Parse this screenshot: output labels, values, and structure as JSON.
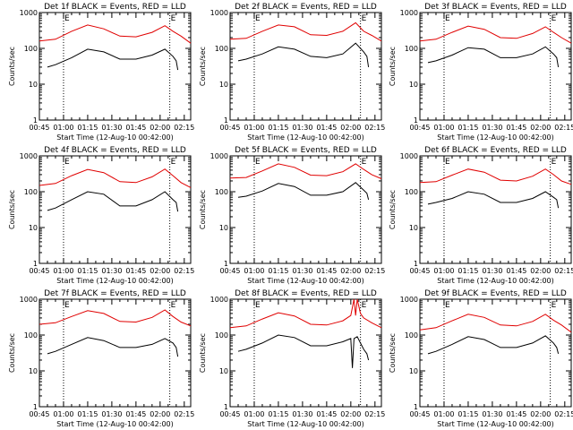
{
  "chart_data": {
    "type": "line",
    "x_label": "Start Time (12-Aug-10 00:42:00)",
    "x_ticks": [
      "00:45",
      "01:00",
      "01:15",
      "01:30",
      "01:45",
      "02:00",
      "02:15"
    ],
    "y_label": "Counts/sec",
    "y_scale": "log",
    "y_range": [
      1,
      1000
    ],
    "y_ticks": [
      "1",
      "10",
      "100",
      "1000"
    ],
    "x_range_minutes": [
      45,
      139
    ],
    "dotted_markers_minutes": [
      60,
      126
    ],
    "marker_labels": [
      "E",
      "E"
    ],
    "series_colors": {
      "events": "#000000",
      "lld": "#e00000"
    },
    "panels": [
      {
        "title": "Det 1f BLACK = Events, RED = LLD",
        "lld": {
          "x": [
            45,
            55,
            65,
            75,
            85,
            95,
            105,
            115,
            123,
            128,
            133,
            139
          ],
          "y": [
            160,
            180,
            300,
            450,
            350,
            220,
            210,
            280,
            430,
            300,
            220,
            140
          ]
        },
        "events": {
          "x": [
            50,
            55,
            65,
            75,
            85,
            95,
            105,
            115,
            123,
            128,
            130,
            131
          ],
          "y": [
            30,
            35,
            55,
            95,
            80,
            50,
            50,
            65,
            95,
            60,
            45,
            25
          ]
        }
      },
      {
        "title": "Det 2f BLACK = Events, RED = LLD",
        "lld": {
          "x": [
            45,
            55,
            65,
            75,
            85,
            95,
            105,
            115,
            123,
            128,
            133,
            139
          ],
          "y": [
            180,
            190,
            300,
            450,
            400,
            240,
            230,
            300,
            520,
            300,
            230,
            160
          ]
        },
        "events": {
          "x": [
            50,
            55,
            65,
            75,
            85,
            95,
            105,
            115,
            123,
            128,
            130,
            131
          ],
          "y": [
            45,
            50,
            70,
            110,
            95,
            60,
            55,
            70,
            140,
            80,
            60,
            30
          ]
        }
      },
      {
        "title": "Det 3f BLACK = Events, RED = LLD",
        "lld": {
          "x": [
            45,
            55,
            65,
            75,
            85,
            95,
            105,
            115,
            123,
            128,
            133,
            139
          ],
          "y": [
            160,
            180,
            280,
            420,
            340,
            200,
            190,
            260,
            400,
            280,
            200,
            140
          ]
        },
        "events": {
          "x": [
            50,
            55,
            65,
            75,
            85,
            95,
            105,
            115,
            123,
            128,
            130,
            131
          ],
          "y": [
            40,
            45,
            65,
            105,
            95,
            55,
            55,
            70,
            110,
            70,
            55,
            30
          ]
        }
      },
      {
        "title": "Det 4f BLACK = Events, RED = LLD",
        "lld": {
          "x": [
            45,
            55,
            65,
            75,
            85,
            95,
            105,
            115,
            123,
            128,
            133,
            139
          ],
          "y": [
            150,
            170,
            280,
            420,
            340,
            190,
            180,
            260,
            430,
            280,
            180,
            130
          ]
        },
        "events": {
          "x": [
            50,
            55,
            65,
            75,
            85,
            95,
            105,
            115,
            123,
            128,
            130,
            131
          ],
          "y": [
            30,
            35,
            60,
            100,
            85,
            40,
            40,
            60,
            100,
            60,
            50,
            28
          ]
        }
      },
      {
        "title": "Det 5f BLACK = Events, RED = LLD",
        "lld": {
          "x": [
            45,
            55,
            65,
            75,
            85,
            95,
            105,
            115,
            123,
            128,
            133,
            139
          ],
          "y": [
            240,
            250,
            380,
            600,
            480,
            290,
            280,
            360,
            600,
            420,
            300,
            230
          ]
        },
        "events": {
          "x": [
            50,
            55,
            65,
            75,
            85,
            95,
            105,
            115,
            123,
            128,
            130,
            131
          ],
          "y": [
            70,
            75,
            105,
            170,
            140,
            80,
            80,
            100,
            180,
            110,
            90,
            60
          ]
        }
      },
      {
        "title": "Det 6f BLACK = Events, RED = LLD",
        "lld": {
          "x": [
            45,
            55,
            65,
            75,
            85,
            95,
            105,
            115,
            123,
            128,
            133,
            139
          ],
          "y": [
            180,
            190,
            290,
            430,
            350,
            210,
            200,
            270,
            430,
            300,
            200,
            160
          ]
        },
        "events": {
          "x": [
            50,
            55,
            65,
            75,
            85,
            95,
            105,
            115,
            123,
            128,
            130,
            131
          ],
          "y": [
            45,
            50,
            65,
            100,
            85,
            50,
            50,
            65,
            100,
            70,
            60,
            35
          ]
        }
      },
      {
        "title": "Det 7f BLACK = Events, RED = LLD",
        "lld": {
          "x": [
            45,
            55,
            65,
            75,
            85,
            95,
            105,
            115,
            123,
            128,
            133,
            139
          ],
          "y": [
            200,
            220,
            330,
            480,
            400,
            240,
            230,
            310,
            500,
            330,
            230,
            180
          ]
        },
        "events": {
          "x": [
            50,
            55,
            65,
            75,
            85,
            95,
            105,
            115,
            123,
            128,
            130,
            131
          ],
          "y": [
            30,
            35,
            55,
            85,
            70,
            45,
            45,
            55,
            80,
            60,
            45,
            25
          ]
        }
      },
      {
        "title": "Det 8f BLACK = Events, RED = LLD",
        "lld": {
          "x": [
            45,
            55,
            65,
            75,
            85,
            95,
            105,
            115,
            120,
            122,
            123,
            124,
            126,
            128,
            133,
            139
          ],
          "y": [
            160,
            180,
            280,
            420,
            340,
            200,
            190,
            250,
            350,
            1000,
            350,
            1000,
            400,
            300,
            220,
            160
          ]
        },
        "events": {
          "x": [
            50,
            55,
            65,
            75,
            85,
            95,
            105,
            115,
            120,
            121,
            122,
            124,
            126,
            128,
            130,
            131
          ],
          "y": [
            35,
            40,
            60,
            100,
            85,
            50,
            50,
            65,
            80,
            12,
            80,
            90,
            60,
            40,
            30,
            20
          ]
        }
      },
      {
        "title": "Det 9f BLACK = Events, RED = LLD",
        "lld": {
          "x": [
            45,
            55,
            65,
            75,
            85,
            95,
            105,
            115,
            123,
            128,
            133,
            139
          ],
          "y": [
            140,
            160,
            250,
            380,
            310,
            190,
            180,
            240,
            380,
            260,
            190,
            120
          ]
        },
        "events": {
          "x": [
            50,
            55,
            65,
            75,
            85,
            95,
            105,
            115,
            123,
            128,
            130,
            131
          ],
          "y": [
            30,
            35,
            55,
            90,
            75,
            45,
            45,
            60,
            95,
            60,
            45,
            30
          ]
        }
      }
    ]
  }
}
